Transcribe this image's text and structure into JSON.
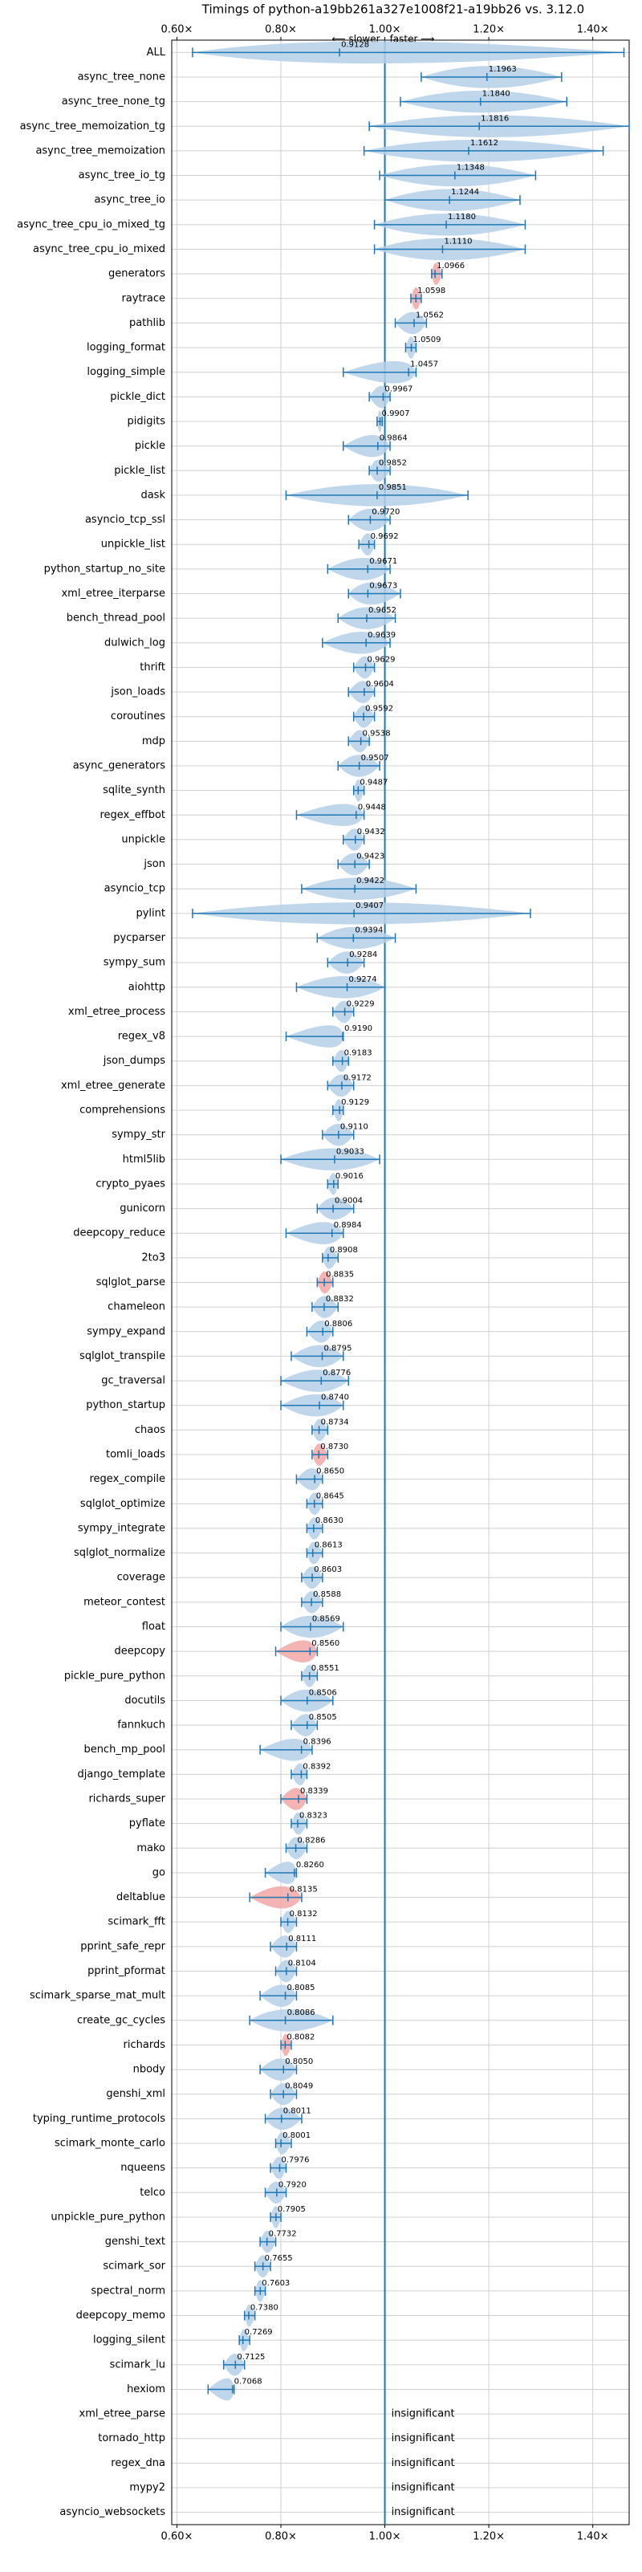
{
  "chart_data": {
    "type": "violin",
    "title": "Timings of python-a19bb261a327e1008f21-a19bb26 vs. 3.12.0",
    "annotations": [
      "⟵ slower",
      "faster ⟶"
    ],
    "categories": [
      "ALL",
      "async_tree_none",
      "async_tree_none_tg",
      "async_tree_memoization_tg",
      "async_tree_memoization",
      "async_tree_io_tg",
      "async_tree_io",
      "async_tree_cpu_io_mixed_tg",
      "async_tree_cpu_io_mixed",
      "generators",
      "raytrace",
      "pathlib",
      "logging_format",
      "logging_simple",
      "pickle_dict",
      "pidigits",
      "pickle",
      "pickle_list",
      "dask",
      "asyncio_tcp_ssl",
      "unpickle_list",
      "python_startup_no_site",
      "xml_etree_iterparse",
      "bench_thread_pool",
      "dulwich_log",
      "thrift",
      "json_loads",
      "coroutines",
      "mdp",
      "async_generators",
      "sqlite_synth",
      "regex_effbot",
      "unpickle",
      "json",
      "asyncio_tcp",
      "pylint",
      "pycparser",
      "sympy_sum",
      "aiohttp",
      "xml_etree_process",
      "regex_v8",
      "json_dumps",
      "xml_etree_generate",
      "comprehensions",
      "sympy_str",
      "html5lib",
      "crypto_pyaes",
      "gunicorn",
      "deepcopy_reduce",
      "2to3",
      "sqlglot_parse",
      "chameleon",
      "sympy_expand",
      "sqlglot_transpile",
      "gc_traversal",
      "python_startup",
      "chaos",
      "tomli_loads",
      "regex_compile",
      "sqlglot_optimize",
      "sympy_integrate",
      "sqlglot_normalize",
      "coverage",
      "meteor_contest",
      "float",
      "deepcopy",
      "pickle_pure_python",
      "docutils",
      "fannkuch",
      "bench_mp_pool",
      "django_template",
      "richards_super",
      "pyflate",
      "mako",
      "go",
      "deltablue",
      "scimark_fft",
      "pprint_safe_repr",
      "pprint_pformat",
      "scimark_sparse_mat_mult",
      "create_gc_cycles",
      "richards",
      "nbody",
      "genshi_xml",
      "typing_runtime_protocols",
      "scimark_monte_carlo",
      "nqueens",
      "telco",
      "unpickle_pure_python",
      "genshi_text",
      "scimark_sor",
      "spectral_norm",
      "deepcopy_memo",
      "logging_silent",
      "scimark_lu",
      "hexiom",
      "xml_etree_parse",
      "tornado_http",
      "regex_dna",
      "mypy2",
      "asyncio_websockets"
    ],
    "values": [
      0.9128,
      1.1963,
      1.184,
      1.1816,
      1.1612,
      1.1348,
      1.1244,
      1.118,
      1.111,
      1.0966,
      1.0598,
      1.0562,
      1.0509,
      1.0457,
      0.9967,
      0.9907,
      0.9864,
      0.9852,
      0.9851,
      0.972,
      0.9692,
      0.9671,
      0.9673,
      0.9652,
      0.9639,
      0.9629,
      0.9604,
      0.9592,
      0.9538,
      0.9507,
      0.9487,
      0.9448,
      0.9432,
      0.9423,
      0.9422,
      0.9407,
      0.9394,
      0.9284,
      0.9274,
      0.9229,
      0.919,
      0.9183,
      0.9172,
      0.9129,
      0.911,
      0.9033,
      0.9016,
      0.9004,
      0.8984,
      0.8908,
      0.8835,
      0.8832,
      0.8806,
      0.8795,
      0.8776,
      0.874,
      0.8734,
      0.873,
      0.865,
      0.8645,
      0.863,
      0.8613,
      0.8603,
      0.8588,
      0.8569,
      0.856,
      0.8551,
      0.8506,
      0.8505,
      0.8396,
      0.8392,
      0.8339,
      0.8323,
      0.8286,
      0.826,
      0.8135,
      0.8132,
      0.8111,
      0.8104,
      0.8085,
      0.8086,
      0.8082,
      0.805,
      0.8049,
      0.8011,
      0.8001,
      0.7976,
      0.792,
      0.7905,
      0.7732,
      0.7655,
      0.7603,
      0.738,
      0.7269,
      0.7125,
      0.7068,
      null,
      null,
      null,
      null,
      null
    ],
    "value_labels": [
      "0.9128",
      "1.1963",
      "1.1840",
      "1.1816",
      "1.1612",
      "1.1348",
      "1.1244",
      "1.1180",
      "1.1110",
      "1.0966",
      "1.0598",
      "1.0562",
      "1.0509",
      "1.0457",
      "0.9967",
      "0.9907",
      "0.9864",
      "0.9852",
      "0.9851",
      "0.9720",
      "0.9692",
      "0.9671",
      "0.9673",
      "0.9652",
      "0.9639",
      "0.9629",
      "0.9604",
      "0.9592",
      "0.9538",
      "0.9507",
      "0.9487",
      "0.9448",
      "0.9432",
      "0.9423",
      "0.9422",
      "0.9407",
      "0.9394",
      "0.9284",
      "0.9274",
      "0.9229",
      "0.9190",
      "0.9183",
      "0.9172",
      "0.9129",
      "0.9110",
      "0.9033",
      "0.9016",
      "0.9004",
      "0.8984",
      "0.8908",
      "0.8835",
      "0.8832",
      "0.8806",
      "0.8795",
      "0.8776",
      "0.8740",
      "0.8734",
      "0.8730",
      "0.8650",
      "0.8645",
      "0.8630",
      "0.8613",
      "0.8603",
      "0.8588",
      "0.8569",
      "0.8560",
      "0.8551",
      "0.8506",
      "0.8505",
      "0.8396",
      "0.8392",
      "0.8339",
      "0.8323",
      "0.8286",
      "0.8260",
      "0.8135",
      "0.8132",
      "0.8111",
      "0.8104",
      "0.8085",
      "0.8086",
      "0.8082",
      "0.8050",
      "0.8049",
      "0.8011",
      "0.8001",
      "0.7976",
      "0.7920",
      "0.7905",
      "0.7732",
      "0.7655",
      "0.7603",
      "0.7380",
      "0.7269",
      "0.7125",
      "0.7068",
      "insignificant",
      "insignificant",
      "insignificant",
      "insignificant",
      "insignificant"
    ],
    "whiskers": [
      [
        0.63,
        1.46
      ],
      [
        1.07,
        1.34
      ],
      [
        1.03,
        1.35
      ],
      [
        0.97,
        1.47
      ],
      [
        0.96,
        1.42
      ],
      [
        0.99,
        1.29
      ],
      [
        1.0,
        1.26
      ],
      [
        0.98,
        1.27
      ],
      [
        0.98,
        1.27
      ],
      [
        1.09,
        1.11
      ],
      [
        1.05,
        1.07
      ],
      [
        1.02,
        1.08
      ],
      [
        1.04,
        1.06
      ],
      [
        0.92,
        1.06
      ],
      [
        0.97,
        1.01
      ],
      [
        0.985,
        0.995
      ],
      [
        0.92,
        1.01
      ],
      [
        0.97,
        1.01
      ],
      [
        0.81,
        1.16
      ],
      [
        0.93,
        1.01
      ],
      [
        0.95,
        0.98
      ],
      [
        0.89,
        1.01
      ],
      [
        0.93,
        1.03
      ],
      [
        0.91,
        1.02
      ],
      [
        0.88,
        1.01
      ],
      [
        0.94,
        0.98
      ],
      [
        0.93,
        0.98
      ],
      [
        0.94,
        0.98
      ],
      [
        0.93,
        0.97
      ],
      [
        0.91,
        0.99
      ],
      [
        0.94,
        0.96
      ],
      [
        0.83,
        0.96
      ],
      [
        0.92,
        0.96
      ],
      [
        0.91,
        0.97
      ],
      [
        0.84,
        1.06
      ],
      [
        0.63,
        1.28
      ],
      [
        0.87,
        1.02
      ],
      [
        0.89,
        0.96
      ],
      [
        0.83,
        1.0
      ],
      [
        0.9,
        0.94
      ],
      [
        0.81,
        0.92
      ],
      [
        0.9,
        0.93
      ],
      [
        0.89,
        0.94
      ],
      [
        0.9,
        0.92
      ],
      [
        0.88,
        0.94
      ],
      [
        0.8,
        0.99
      ],
      [
        0.89,
        0.91
      ],
      [
        0.87,
        0.94
      ],
      [
        0.81,
        0.92
      ],
      [
        0.88,
        0.91
      ],
      [
        0.87,
        0.9
      ],
      [
        0.86,
        0.91
      ],
      [
        0.85,
        0.9
      ],
      [
        0.82,
        0.92
      ],
      [
        0.8,
        0.93
      ],
      [
        0.8,
        0.92
      ],
      [
        0.86,
        0.89
      ],
      [
        0.86,
        0.89
      ],
      [
        0.83,
        0.88
      ],
      [
        0.85,
        0.88
      ],
      [
        0.85,
        0.88
      ],
      [
        0.85,
        0.88
      ],
      [
        0.84,
        0.88
      ],
      [
        0.84,
        0.88
      ],
      [
        0.8,
        0.92
      ],
      [
        0.79,
        0.87
      ],
      [
        0.84,
        0.87
      ],
      [
        0.8,
        0.9
      ],
      [
        0.82,
        0.87
      ],
      [
        0.76,
        0.86
      ],
      [
        0.82,
        0.85
      ],
      [
        0.8,
        0.85
      ],
      [
        0.82,
        0.85
      ],
      [
        0.81,
        0.85
      ],
      [
        0.77,
        0.83
      ],
      [
        0.74,
        0.84
      ],
      [
        0.8,
        0.83
      ],
      [
        0.78,
        0.83
      ],
      [
        0.79,
        0.83
      ],
      [
        0.76,
        0.83
      ],
      [
        0.74,
        0.9
      ],
      [
        0.8,
        0.82
      ],
      [
        0.76,
        0.83
      ],
      [
        0.78,
        0.83
      ],
      [
        0.77,
        0.84
      ],
      [
        0.79,
        0.82
      ],
      [
        0.78,
        0.81
      ],
      [
        0.77,
        0.81
      ],
      [
        0.78,
        0.8
      ],
      [
        0.76,
        0.79
      ],
      [
        0.75,
        0.78
      ],
      [
        0.75,
        0.77
      ],
      [
        0.73,
        0.75
      ],
      [
        0.72,
        0.74
      ],
      [
        0.69,
        0.73
      ],
      [
        0.66,
        0.71
      ],
      null,
      null,
      null,
      null,
      null
    ],
    "colors": [
      "#b5d0e8",
      "#b5d0e8",
      "#b5d0e8",
      "#b5d0e8",
      "#b5d0e8",
      "#b5d0e8",
      "#b5d0e8",
      "#b5d0e8",
      "#b5d0e8",
      "#f2a7a7",
      "#f2a7a7",
      "#b5d0e8",
      "#b5d0e8",
      "#b5d0e8",
      "#b5d0e8",
      "#b5d0e8",
      "#b5d0e8",
      "#b5d0e8",
      "#b5d0e8",
      "#b5d0e8",
      "#b5d0e8",
      "#b5d0e8",
      "#b5d0e8",
      "#b5d0e8",
      "#b5d0e8",
      "#b5d0e8",
      "#b5d0e8",
      "#b5d0e8",
      "#b5d0e8",
      "#b5d0e8",
      "#b5d0e8",
      "#b5d0e8",
      "#b5d0e8",
      "#b5d0e8",
      "#b5d0e8",
      "#b5d0e8",
      "#b5d0e8",
      "#b5d0e8",
      "#b5d0e8",
      "#b5d0e8",
      "#b5d0e8",
      "#b5d0e8",
      "#b5d0e8",
      "#b5d0e8",
      "#b5d0e8",
      "#b5d0e8",
      "#b5d0e8",
      "#b5d0e8",
      "#b5d0e8",
      "#b5d0e8",
      "#f2a7a7",
      "#b5d0e8",
      "#b5d0e8",
      "#b5d0e8",
      "#b5d0e8",
      "#b5d0e8",
      "#b5d0e8",
      "#f2a7a7",
      "#b5d0e8",
      "#b5d0e8",
      "#b5d0e8",
      "#b5d0e8",
      "#b5d0e8",
      "#b5d0e8",
      "#b5d0e8",
      "#f2a7a7",
      "#b5d0e8",
      "#b5d0e8",
      "#b5d0e8",
      "#b5d0e8",
      "#b5d0e8",
      "#f2a7a7",
      "#b5d0e8",
      "#b5d0e8",
      "#b5d0e8",
      "#f2a7a7",
      "#b5d0e8",
      "#b5d0e8",
      "#b5d0e8",
      "#b5d0e8",
      "#b5d0e8",
      "#f2a7a7",
      "#b5d0e8",
      "#b5d0e8",
      "#b5d0e8",
      "#b5d0e8",
      "#b5d0e8",
      "#b5d0e8",
      "#b5d0e8",
      "#b5d0e8",
      "#b5d0e8",
      "#b5d0e8",
      "#b5d0e8",
      "#b5d0e8",
      "#b5d0e8",
      "#b5d0e8",
      null,
      null,
      null,
      null,
      null
    ],
    "line_color": "#1f77b4",
    "reference": 1,
    "xlim": [
      0.59,
      1.47
    ],
    "xticks": [
      {
        "value": 0.6,
        "label": "0.60×"
      },
      {
        "value": 0.8,
        "label": "0.80×"
      },
      {
        "value": 1,
        "label": "1.00×"
      },
      {
        "value": 1.2,
        "label": "1.20×"
      },
      {
        "value": 1.4,
        "label": "1.40×"
      }
    ],
    "grid": true
  }
}
